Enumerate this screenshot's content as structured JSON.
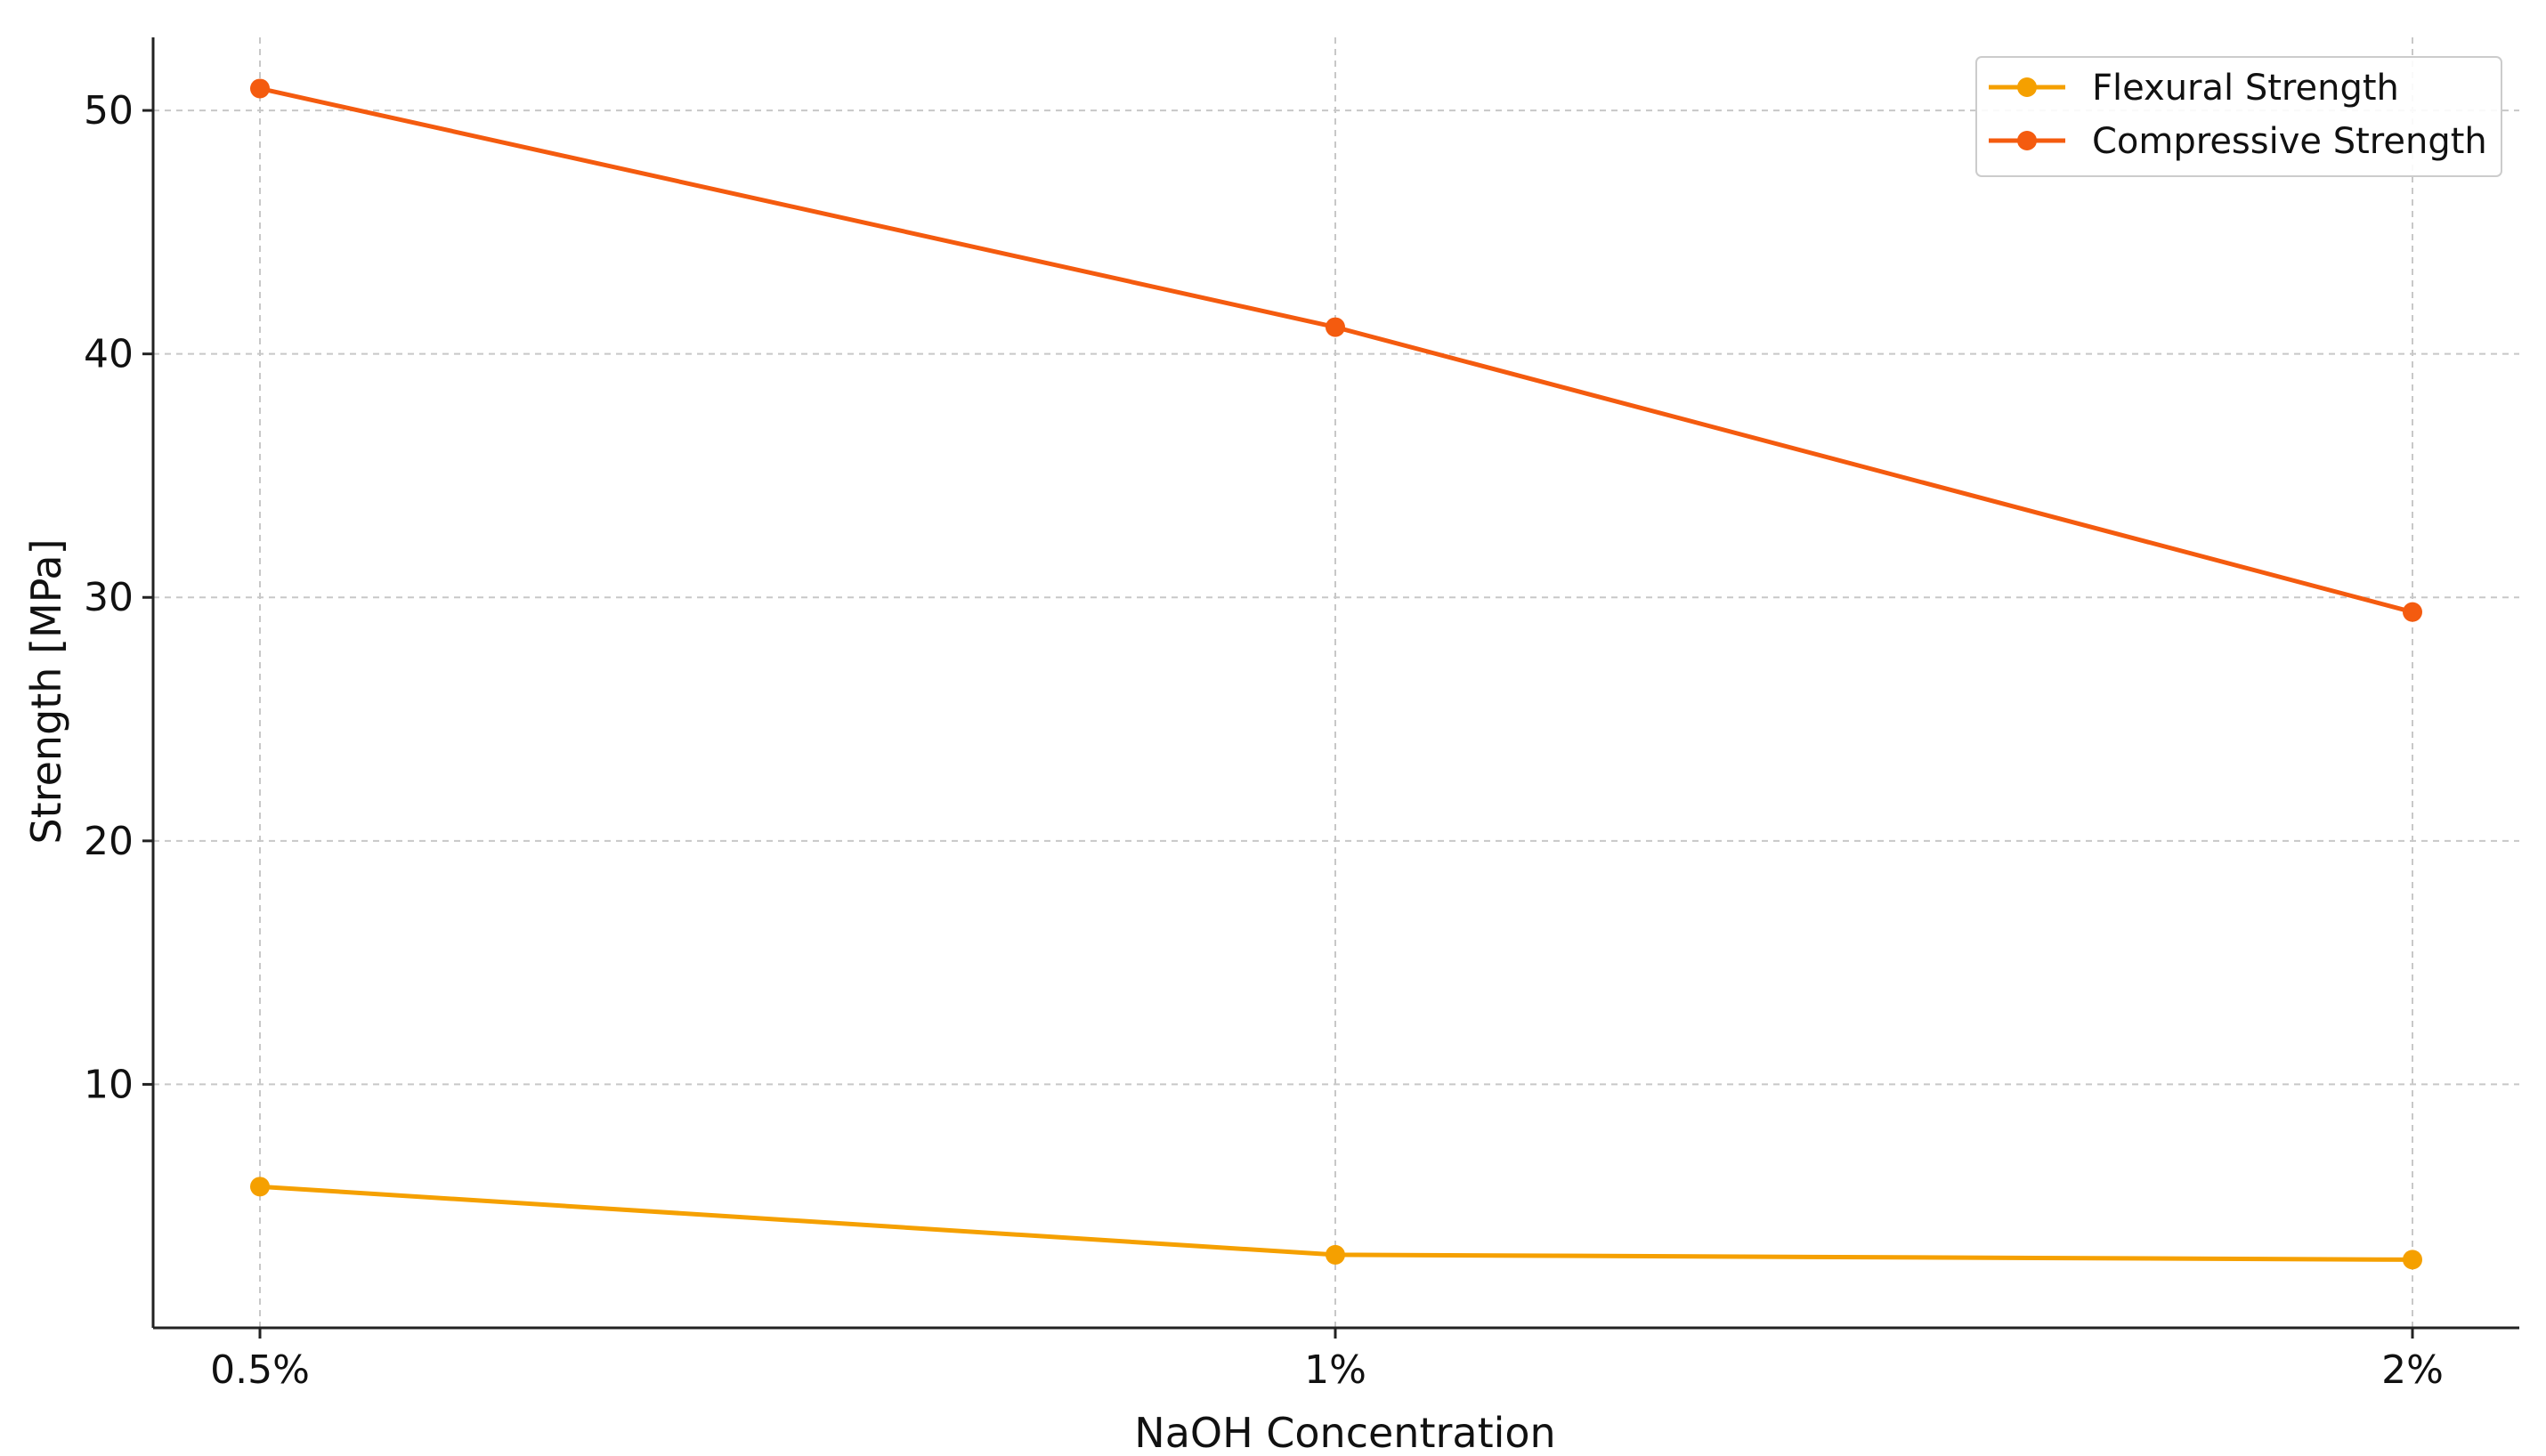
{
  "chart_data": {
    "type": "line",
    "title": "",
    "xlabel": "NaOH Concentration",
    "ylabel": "Strength [MPa]",
    "categories": [
      "0.5%",
      "1%",
      "2%"
    ],
    "ylim": [
      0,
      53
    ],
    "yticks": [
      10,
      20,
      30,
      40,
      50
    ],
    "grid": true,
    "legend_position": "top-right",
    "series": [
      {
        "name": "Flexural Strength",
        "color": "#f5a000",
        "values": [
          5.8,
          3.0,
          2.8
        ]
      },
      {
        "name": "Compressive Strength",
        "color": "#f45b0f",
        "values": [
          50.9,
          41.1,
          29.4
        ]
      }
    ]
  }
}
